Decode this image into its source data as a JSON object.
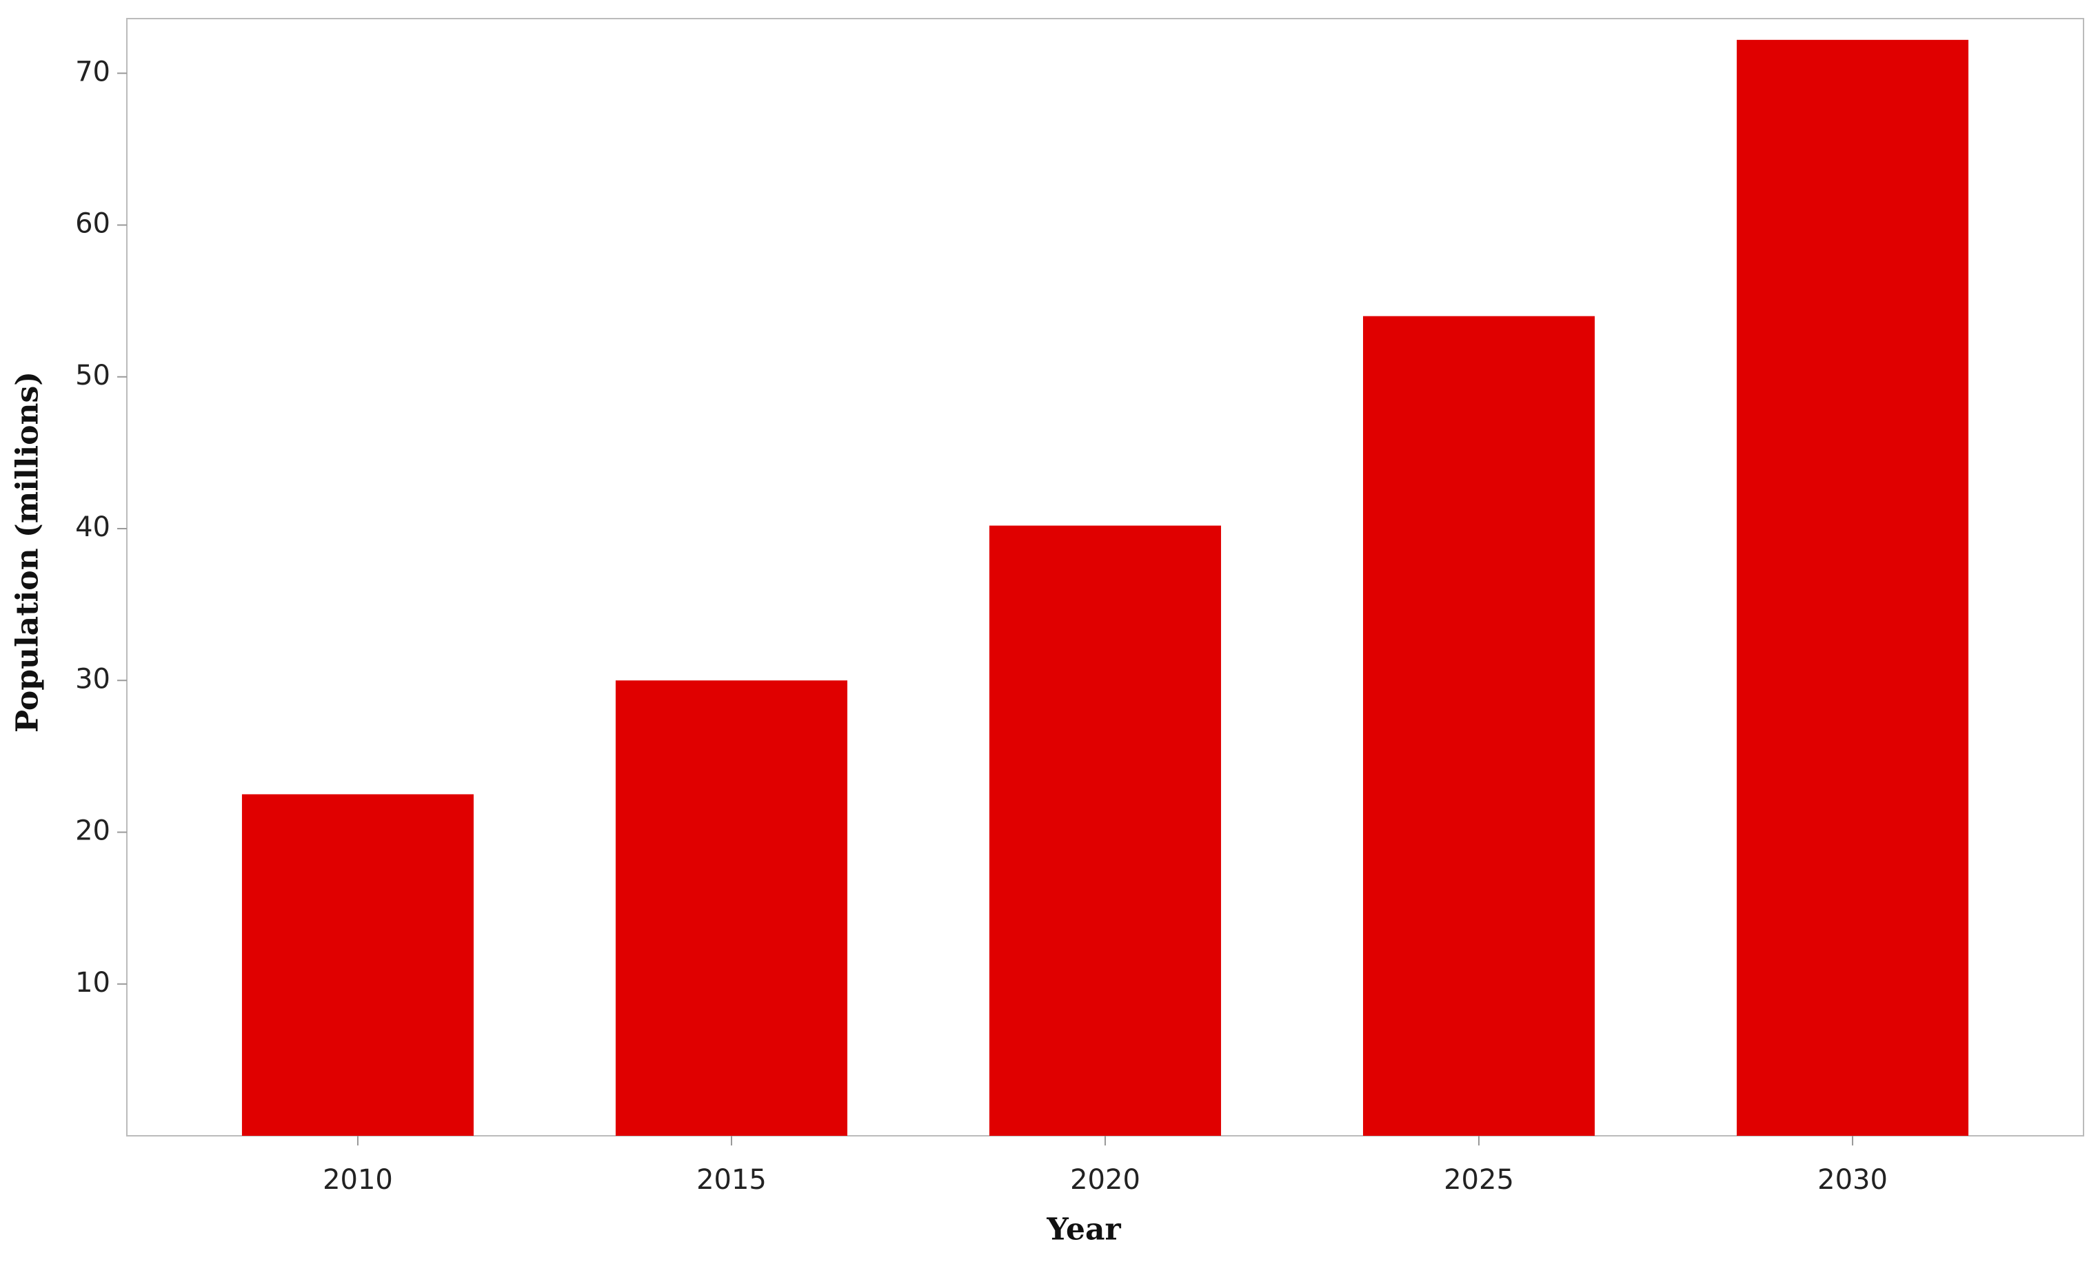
{
  "chart_data": {
    "type": "bar",
    "xlabel": "Year",
    "ylabel": "Population (millions)",
    "categories": [
      "2010",
      "2015",
      "2020",
      "2025",
      "2030"
    ],
    "values": [
      22.5,
      30.0,
      40.2,
      54.0,
      72.2
    ],
    "color": "#e00000",
    "ylim": [
      0,
      73.6
    ],
    "yticks": [
      10,
      20,
      30,
      40,
      50,
      60,
      70
    ],
    "grid": false
  }
}
